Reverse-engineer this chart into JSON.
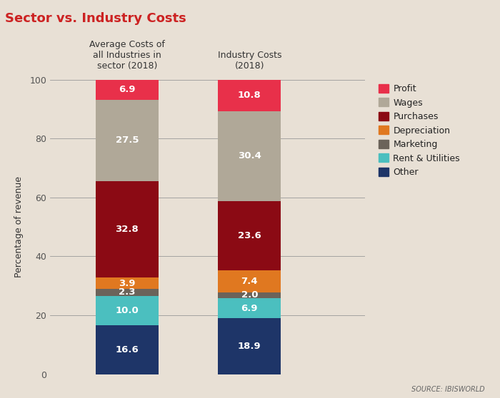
{
  "title": "Sector vs. Industry Costs",
  "title_color": "#cc2222",
  "background_color": "#e8e0d5",
  "plot_background_color": "#e8e0d5",
  "ylabel": "Percentage of revenue",
  "ylim": [
    0,
    100
  ],
  "bar_labels": [
    "Average Costs of\nall Industries in\nsector (2018)",
    "Industry Costs\n(2018)"
  ],
  "categories": [
    "Other",
    "Rent & Utilities",
    "Marketing",
    "Depreciation",
    "Purchases",
    "Wages",
    "Profit"
  ],
  "colors": [
    "#1e3568",
    "#4bbfbf",
    "#6b635a",
    "#e07820",
    "#8b0a14",
    "#b0a898",
    "#e8304a"
  ],
  "bar1_values": [
    16.6,
    10.0,
    2.3,
    3.9,
    32.8,
    27.5,
    6.9
  ],
  "bar2_values": [
    18.9,
    6.9,
    2.0,
    7.4,
    23.6,
    30.4,
    10.8
  ],
  "legend_labels": [
    "Profit",
    "Wages",
    "Purchases",
    "Depreciation",
    "Marketing",
    "Rent & Utilities",
    "Other"
  ],
  "legend_colors": [
    "#e8304a",
    "#b0a898",
    "#8b0a14",
    "#e07820",
    "#6b635a",
    "#4bbfbf",
    "#1e3568"
  ],
  "source_text": "SOURCE: IBISWORLD",
  "bar_width": 0.18,
  "bar_positions": [
    0.27,
    0.62
  ],
  "xlim": [
    0.05,
    0.95
  ]
}
